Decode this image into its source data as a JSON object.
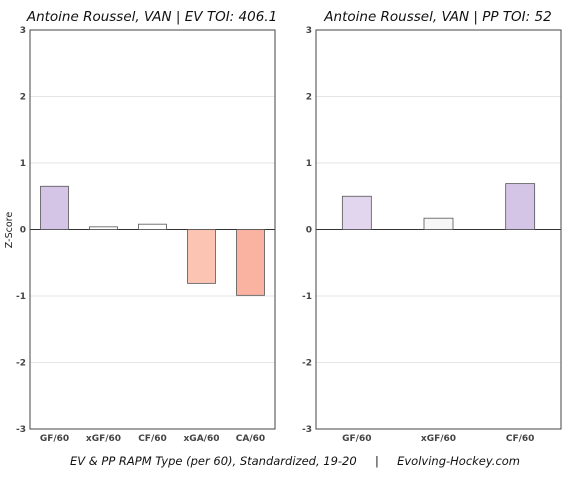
{
  "footer": "EV & PP RAPM Type (per 60), Standardized, 19-20     |     Evolving-Hockey.com",
  "ylabel": "Z-Score",
  "chart_data": [
    {
      "type": "bar",
      "title": "Antoine Roussel, VAN  |  EV TOI: 406.1",
      "categories": [
        "GF/60",
        "xGF/60",
        "CF/60",
        "xGA/60",
        "CA/60"
      ],
      "values": [
        0.65,
        0.04,
        0.08,
        -0.81,
        -0.99
      ],
      "colors": [
        "#d4c4e6",
        "#ffffff",
        "#ffffff",
        "#fcc5b3",
        "#f9b3a0"
      ],
      "ylim": [
        -3,
        3
      ],
      "yticks": [
        -3,
        -2,
        -1,
        0,
        1,
        2,
        3
      ],
      "ylabel": "Z-Score",
      "grid": true
    },
    {
      "type": "bar",
      "title": "Antoine Roussel, VAN  |  PP TOI: 52",
      "categories": [
        "GF/60",
        "xGF/60",
        "CF/60"
      ],
      "values": [
        0.5,
        0.17,
        0.69
      ],
      "colors": [
        "#e2d6ee",
        "#f7f7f7",
        "#d4c4e6"
      ],
      "ylim": [
        -3,
        3
      ],
      "yticks": [
        -3,
        -2,
        -1,
        0,
        1,
        2,
        3
      ],
      "grid": true
    }
  ]
}
